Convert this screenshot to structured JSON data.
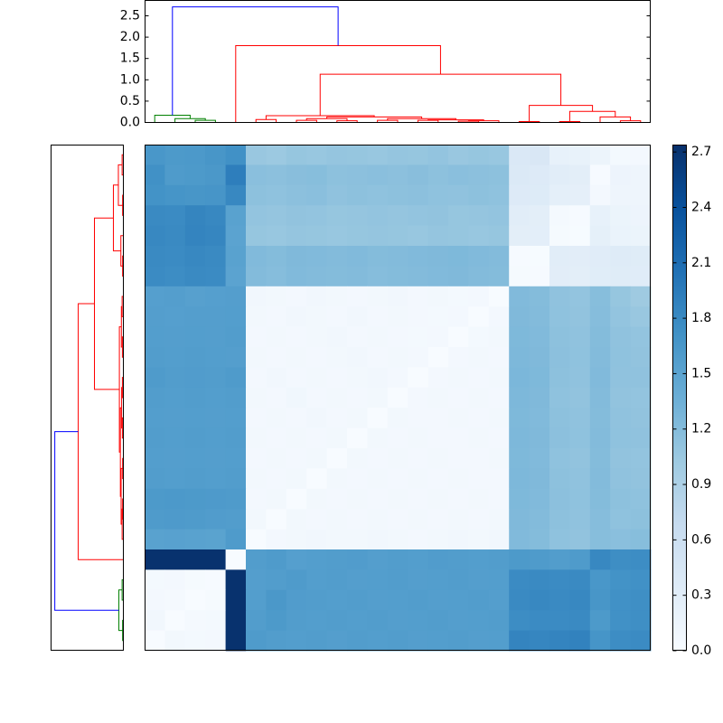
{
  "chart_data": {
    "type": "heatmap",
    "zlim": [
      0,
      2.74
    ],
    "colormap": [
      "#f7fbff",
      "#deebf7",
      "#c6dbef",
      "#9ecae1",
      "#6baed6",
      "#4292c6",
      "#2171b5",
      "#08519c",
      "#08306b"
    ],
    "colorbar_ticks": [
      {
        "value": 0,
        "label": "0.0"
      },
      {
        "value": 0.3,
        "label": "0.3"
      },
      {
        "value": 0.6,
        "label": "0.6"
      },
      {
        "value": 0.9,
        "label": "0.9"
      },
      {
        "value": 1.2,
        "label": "1.2"
      },
      {
        "value": 1.5,
        "label": "1.5"
      },
      {
        "value": 1.8,
        "label": "1.8"
      },
      {
        "value": 2.1,
        "label": "2.1"
      },
      {
        "value": 2.4,
        "label": "2.4"
      },
      {
        "value": 2.7,
        "label": "2.7"
      }
    ],
    "matrix": [
      [
        1.65,
        1.62,
        1.63,
        1.66,
        1.72,
        1.06,
        1.04,
        1.08,
        1.07,
        1.09,
        1.08,
        1.07,
        1.09,
        1.08,
        1.1,
        1.06,
        1.08,
        1.07,
        0.4,
        0.42,
        0.22,
        0.2,
        0.15,
        0.05,
        0.06
      ],
      [
        1.72,
        1.6,
        1.62,
        1.64,
        1.92,
        1.16,
        1.15,
        1.17,
        1.18,
        1.14,
        1.15,
        1.16,
        1.15,
        1.17,
        1.14,
        1.16,
        1.15,
        1.14,
        0.38,
        0.36,
        0.3,
        0.28,
        0.02,
        0.14,
        0.12
      ],
      [
        1.7,
        1.68,
        1.66,
        1.67,
        1.82,
        1.14,
        1.13,
        1.15,
        1.16,
        1.12,
        1.14,
        1.13,
        1.14,
        1.15,
        1.13,
        1.12,
        1.14,
        1.13,
        0.36,
        0.35,
        0.26,
        0.25,
        0.06,
        0.13,
        0.12
      ],
      [
        1.8,
        1.78,
        1.85,
        1.82,
        1.52,
        1.1,
        1.09,
        1.11,
        1.1,
        1.08,
        1.09,
        1.1,
        1.09,
        1.1,
        1.11,
        1.08,
        1.09,
        1.1,
        0.3,
        0.28,
        0.04,
        0.02,
        0.22,
        0.16,
        0.14
      ],
      [
        1.82,
        1.8,
        1.86,
        1.84,
        1.5,
        1.08,
        1.07,
        1.09,
        1.08,
        1.07,
        1.08,
        1.09,
        1.08,
        1.07,
        1.09,
        1.08,
        1.07,
        1.08,
        0.28,
        0.27,
        0.03,
        0.01,
        0.24,
        0.18,
        0.16
      ],
      [
        1.8,
        1.78,
        1.82,
        1.8,
        1.52,
        1.22,
        1.2,
        1.23,
        1.22,
        1.21,
        1.22,
        1.2,
        1.21,
        1.22,
        1.23,
        1.24,
        1.22,
        1.21,
        0.02,
        0.01,
        0.3,
        0.29,
        0.32,
        0.34,
        0.33
      ],
      [
        1.78,
        1.76,
        1.8,
        1.78,
        1.5,
        1.21,
        1.19,
        1.22,
        1.21,
        1.2,
        1.21,
        1.19,
        1.2,
        1.21,
        1.22,
        1.23,
        1.21,
        1.2,
        0.03,
        0.02,
        0.29,
        0.28,
        0.31,
        0.33,
        0.32
      ],
      [
        1.55,
        1.56,
        1.54,
        1.55,
        1.56,
        0.08,
        0.07,
        0.06,
        0.08,
        0.07,
        0.06,
        0.07,
        0.08,
        0.06,
        0.07,
        0.05,
        0.06,
        0.0,
        1.22,
        1.2,
        1.12,
        1.1,
        1.18,
        1.08,
        1.02
      ],
      [
        1.56,
        1.55,
        1.56,
        1.56,
        1.57,
        0.07,
        0.06,
        0.08,
        0.07,
        0.06,
        0.08,
        0.06,
        0.07,
        0.06,
        0.05,
        0.06,
        0.0,
        0.06,
        1.23,
        1.21,
        1.13,
        1.11,
        1.19,
        1.1,
        1.06
      ],
      [
        1.57,
        1.56,
        1.57,
        1.56,
        1.58,
        0.06,
        0.07,
        0.06,
        0.07,
        0.08,
        0.06,
        0.07,
        0.06,
        0.05,
        0.06,
        0.0,
        0.05,
        0.07,
        1.24,
        1.22,
        1.14,
        1.12,
        1.2,
        1.12,
        1.1
      ],
      [
        1.58,
        1.57,
        1.58,
        1.57,
        1.56,
        0.07,
        0.06,
        0.07,
        0.06,
        0.07,
        0.08,
        0.06,
        0.07,
        0.06,
        0.0,
        0.06,
        0.07,
        0.06,
        1.25,
        1.23,
        1.15,
        1.13,
        1.21,
        1.13,
        1.11
      ],
      [
        1.6,
        1.58,
        1.59,
        1.58,
        1.6,
        0.06,
        0.08,
        0.06,
        0.07,
        0.06,
        0.07,
        0.08,
        0.06,
        0.0,
        0.06,
        0.07,
        0.06,
        0.07,
        1.26,
        1.24,
        1.14,
        1.12,
        1.22,
        1.12,
        1.12
      ],
      [
        1.58,
        1.57,
        1.58,
        1.57,
        1.58,
        0.07,
        0.06,
        0.09,
        0.06,
        0.07,
        0.06,
        0.07,
        0.0,
        0.06,
        0.07,
        0.06,
        0.07,
        0.06,
        1.25,
        1.23,
        1.13,
        1.11,
        1.21,
        1.11,
        1.1
      ],
      [
        1.57,
        1.56,
        1.57,
        1.56,
        1.57,
        0.06,
        0.07,
        0.06,
        0.08,
        0.06,
        0.07,
        0.0,
        0.07,
        0.06,
        0.06,
        0.07,
        0.06,
        0.07,
        1.24,
        1.22,
        1.14,
        1.12,
        1.2,
        1.12,
        1.11
      ],
      [
        1.58,
        1.57,
        1.58,
        1.57,
        1.58,
        0.07,
        0.06,
        0.07,
        0.06,
        0.07,
        0.0,
        0.07,
        0.06,
        0.07,
        0.06,
        0.06,
        0.07,
        0.06,
        1.25,
        1.23,
        1.15,
        1.13,
        1.21,
        1.13,
        1.12
      ],
      [
        1.57,
        1.56,
        1.57,
        1.56,
        1.57,
        0.06,
        0.07,
        0.06,
        0.07,
        0.0,
        0.07,
        0.06,
        0.07,
        0.06,
        0.07,
        0.06,
        0.06,
        0.07,
        1.24,
        1.22,
        1.13,
        1.11,
        1.2,
        1.11,
        1.1
      ],
      [
        1.58,
        1.57,
        1.58,
        1.57,
        1.58,
        0.07,
        0.06,
        0.07,
        0.0,
        0.07,
        0.06,
        0.07,
        0.06,
        0.07,
        0.06,
        0.07,
        0.06,
        0.06,
        1.25,
        1.23,
        1.14,
        1.12,
        1.21,
        1.12,
        1.11
      ],
      [
        1.62,
        1.63,
        1.62,
        1.61,
        1.6,
        0.06,
        0.07,
        0.0,
        0.07,
        0.06,
        0.07,
        0.06,
        0.07,
        0.06,
        0.07,
        0.06,
        0.07,
        0.06,
        1.24,
        1.22,
        1.15,
        1.13,
        1.2,
        1.14,
        1.13
      ],
      [
        1.6,
        1.61,
        1.6,
        1.59,
        1.58,
        0.07,
        0.0,
        0.07,
        0.06,
        0.07,
        0.06,
        0.07,
        0.06,
        0.07,
        0.06,
        0.07,
        0.06,
        0.07,
        1.23,
        1.21,
        1.14,
        1.12,
        1.19,
        1.13,
        1.14
      ],
      [
        1.52,
        1.53,
        1.52,
        1.51,
        1.6,
        0.0,
        0.06,
        0.07,
        0.08,
        0.07,
        0.07,
        0.08,
        0.07,
        0.06,
        0.07,
        0.08,
        0.07,
        0.08,
        1.22,
        1.2,
        1.13,
        1.11,
        1.18,
        1.16,
        1.18
      ],
      [
        2.72,
        2.72,
        2.72,
        2.72,
        0.0,
        1.58,
        1.6,
        1.55,
        1.57,
        1.58,
        1.59,
        1.56,
        1.58,
        1.57,
        1.59,
        1.58,
        1.57,
        1.58,
        1.62,
        1.6,
        1.58,
        1.6,
        1.82,
        1.75,
        1.76
      ],
      [
        0.05,
        0.06,
        0.03,
        0.02,
        2.72,
        1.56,
        1.58,
        1.6,
        1.57,
        1.58,
        1.56,
        1.57,
        1.58,
        1.56,
        1.57,
        1.58,
        1.56,
        1.57,
        1.78,
        1.8,
        1.78,
        1.8,
        1.65,
        1.7,
        1.72
      ],
      [
        0.06,
        0.04,
        0.0,
        0.03,
        2.72,
        1.57,
        1.64,
        1.59,
        1.58,
        1.57,
        1.58,
        1.56,
        1.57,
        1.58,
        1.56,
        1.57,
        1.58,
        1.56,
        1.8,
        1.82,
        1.8,
        1.82,
        1.66,
        1.72,
        1.74
      ],
      [
        0.08,
        0.0,
        0.04,
        0.05,
        2.72,
        1.58,
        1.62,
        1.58,
        1.57,
        1.58,
        1.57,
        1.58,
        1.56,
        1.57,
        1.58,
        1.56,
        1.57,
        1.58,
        1.76,
        1.78,
        1.78,
        1.8,
        1.62,
        1.72,
        1.74
      ],
      [
        0.0,
        0.07,
        0.05,
        0.06,
        2.72,
        1.6,
        1.58,
        1.57,
        1.58,
        1.56,
        1.58,
        1.57,
        1.58,
        1.56,
        1.57,
        1.58,
        1.56,
        1.57,
        1.86,
        1.84,
        1.86,
        1.88,
        1.68,
        1.76,
        1.78
      ]
    ],
    "top_dendrogram": {
      "xlim": [
        0,
        250
      ],
      "ylim": [
        0,
        2.86
      ],
      "yticks": [
        {
          "value": 0,
          "label": "0.0"
        },
        {
          "value": 0.5,
          "label": "0.5"
        },
        {
          "value": 1,
          "label": "1.0"
        },
        {
          "value": 1.5,
          "label": "1.5"
        },
        {
          "value": 2,
          "label": "2.0"
        },
        {
          "value": 2.5,
          "label": "2.5"
        }
      ],
      "icoord": [
        [
          25,
          25,
          35,
          35
        ],
        [
          15,
          15,
          30,
          30
        ],
        [
          5,
          5,
          22.5,
          22.5
        ],
        [
          55,
          55,
          65,
          65
        ],
        [
          75,
          75,
          85,
          85
        ],
        [
          95,
          95,
          105,
          105
        ],
        [
          80,
          80,
          100,
          100
        ],
        [
          115,
          115,
          125,
          125
        ],
        [
          135,
          135,
          145,
          145
        ],
        [
          155,
          155,
          165,
          165
        ],
        [
          160,
          160,
          175,
          175
        ],
        [
          140,
          140,
          167.5,
          167.5
        ],
        [
          120,
          120,
          153.75,
          153.75
        ],
        [
          90,
          90,
          136.875,
          136.875
        ],
        [
          60,
          60,
          113.4375,
          113.4375
        ],
        [
          185,
          185,
          195,
          195
        ],
        [
          205,
          205,
          215,
          215
        ],
        [
          235,
          235,
          245,
          245
        ],
        [
          225,
          225,
          240,
          240
        ],
        [
          210,
          210,
          232.5,
          232.5
        ],
        [
          190,
          190,
          221.25,
          221.25
        ],
        [
          86.71875,
          86.71875,
          205.625,
          205.625
        ],
        [
          45,
          45,
          146.171875,
          146.171875
        ],
        [
          13.75,
          13.75,
          95.5859375,
          95.5859375
        ]
      ],
      "dcoord": [
        [
          0,
          0.05,
          0.05,
          0
        ],
        [
          0,
          0.09,
          0.09,
          0.05
        ],
        [
          0,
          0.17,
          0.17,
          0.09
        ],
        [
          0,
          0.07,
          0.07,
          0
        ],
        [
          0,
          0.05,
          0.05,
          0
        ],
        [
          0,
          0.04,
          0.04,
          0
        ],
        [
          0.05,
          0.09,
          0.09,
          0.04
        ],
        [
          0,
          0.05,
          0.05,
          0
        ],
        [
          0,
          0.05,
          0.05,
          0
        ],
        [
          0,
          0.03,
          0.03,
          0
        ],
        [
          0.03,
          0.04,
          0.04,
          0
        ],
        [
          0.05,
          0.06,
          0.06,
          0.04
        ],
        [
          0.05,
          0.09,
          0.09,
          0.06
        ],
        [
          0.09,
          0.13,
          0.13,
          0.09
        ],
        [
          0.07,
          0.16,
          0.16,
          0.13
        ],
        [
          0,
          0.02,
          0.02,
          0
        ],
        [
          0,
          0.02,
          0.02,
          0
        ],
        [
          0,
          0.04,
          0.04,
          0
        ],
        [
          0,
          0.13,
          0.13,
          0.04
        ],
        [
          0.02,
          0.26,
          0.26,
          0.13
        ],
        [
          0.02,
          0.4,
          0.4,
          0.26
        ],
        [
          0.16,
          1.13,
          1.13,
          0.4
        ],
        [
          0,
          1.8,
          1.8,
          1.13
        ],
        [
          0.17,
          2.71,
          2.71,
          1.8
        ]
      ],
      "colors": [
        "#008000",
        "#008000",
        "#008000",
        "#ff0000",
        "#ff0000",
        "#ff0000",
        "#ff0000",
        "#ff0000",
        "#ff0000",
        "#ff0000",
        "#ff0000",
        "#ff0000",
        "#ff0000",
        "#ff0000",
        "#ff0000",
        "#ff0000",
        "#ff0000",
        "#ff0000",
        "#ff0000",
        "#ff0000",
        "#ff0000",
        "#ff0000",
        "#ff0000",
        "#0000ff"
      ]
    },
    "left_dendrogram": {
      "ylim": [
        0,
        250
      ],
      "xlim": [
        0,
        2.9
      ],
      "icoord": [
        [
          215,
          215,
          225,
          225
        ],
        [
          235,
          235,
          245,
          245
        ],
        [
          220,
          220,
          240,
          240
        ],
        [
          25,
          25,
          35,
          35
        ],
        [
          5,
          5,
          15,
          15
        ],
        [
          10,
          10,
          30,
          30
        ],
        [
          55,
          55,
          65,
          65
        ],
        [
          45,
          45,
          60,
          60
        ],
        [
          20,
          20,
          52.5,
          52.5
        ],
        [
          75,
          75,
          85,
          85
        ],
        [
          95,
          95,
          105,
          105
        ],
        [
          80,
          80,
          100,
          100
        ],
        [
          115,
          115,
          125,
          125
        ],
        [
          135,
          135,
          145,
          145
        ],
        [
          120,
          120,
          140,
          140
        ],
        [
          155,
          155,
          165,
          165
        ],
        [
          175,
          175,
          185,
          185
        ],
        [
          180,
          180,
          195,
          195
        ],
        [
          160,
          160,
          187.5,
          187.5
        ],
        [
          130,
          130,
          173.75,
          173.75
        ],
        [
          90,
          90,
          151.875,
          151.875
        ],
        [
          36.25,
          36.25,
          120.9375,
          120.9375
        ],
        [
          78.59375,
          78.59375,
          205,
          205
        ],
        [
          141.796875,
          141.796875,
          230,
          230
        ]
      ],
      "dcoord": [
        [
          0,
          0.05,
          0.05,
          0
        ],
        [
          0,
          0.03,
          0.03,
          0
        ],
        [
          0.05,
          0.18,
          0.18,
          0.03
        ],
        [
          0,
          0.03,
          0.03,
          0
        ],
        [
          0,
          0.05,
          0.05,
          0
        ],
        [
          0.05,
          0.2,
          0.2,
          0.03
        ],
        [
          0,
          0.03,
          0.03,
          0
        ],
        [
          0,
          0.1,
          0.1,
          0.03
        ],
        [
          0.2,
          0.4,
          0.4,
          0.1
        ],
        [
          0,
          0.05,
          0.05,
          0
        ],
        [
          0,
          0.04,
          0.04,
          0
        ],
        [
          0.05,
          0.08,
          0.08,
          0.04
        ],
        [
          0,
          0.04,
          0.04,
          0
        ],
        [
          0,
          0.04,
          0.04,
          0
        ],
        [
          0.04,
          0.07,
          0.07,
          0.04
        ],
        [
          0,
          0.03,
          0.03,
          0
        ],
        [
          0,
          0.03,
          0.03,
          0
        ],
        [
          0.03,
          0.05,
          0.05,
          0
        ],
        [
          0.03,
          0.09,
          0.09,
          0.05
        ],
        [
          0.07,
          0.12,
          0.12,
          0.09
        ],
        [
          0.08,
          0.16,
          0.16,
          0.12
        ],
        [
          0.4,
          1.16,
          1.16,
          0.16
        ],
        [
          1.16,
          1.81,
          1.81,
          0
        ],
        [
          1.81,
          2.75,
          2.75,
          0.18
        ]
      ],
      "colors": [
        "#008000",
        "#008000",
        "#008000",
        "#ff0000",
        "#ff0000",
        "#ff0000",
        "#ff0000",
        "#ff0000",
        "#ff0000",
        "#ff0000",
        "#ff0000",
        "#ff0000",
        "#ff0000",
        "#ff0000",
        "#ff0000",
        "#ff0000",
        "#ff0000",
        "#ff0000",
        "#ff0000",
        "#ff0000",
        "#ff0000",
        "#ff0000",
        "#ff0000",
        "#0000ff"
      ]
    }
  }
}
